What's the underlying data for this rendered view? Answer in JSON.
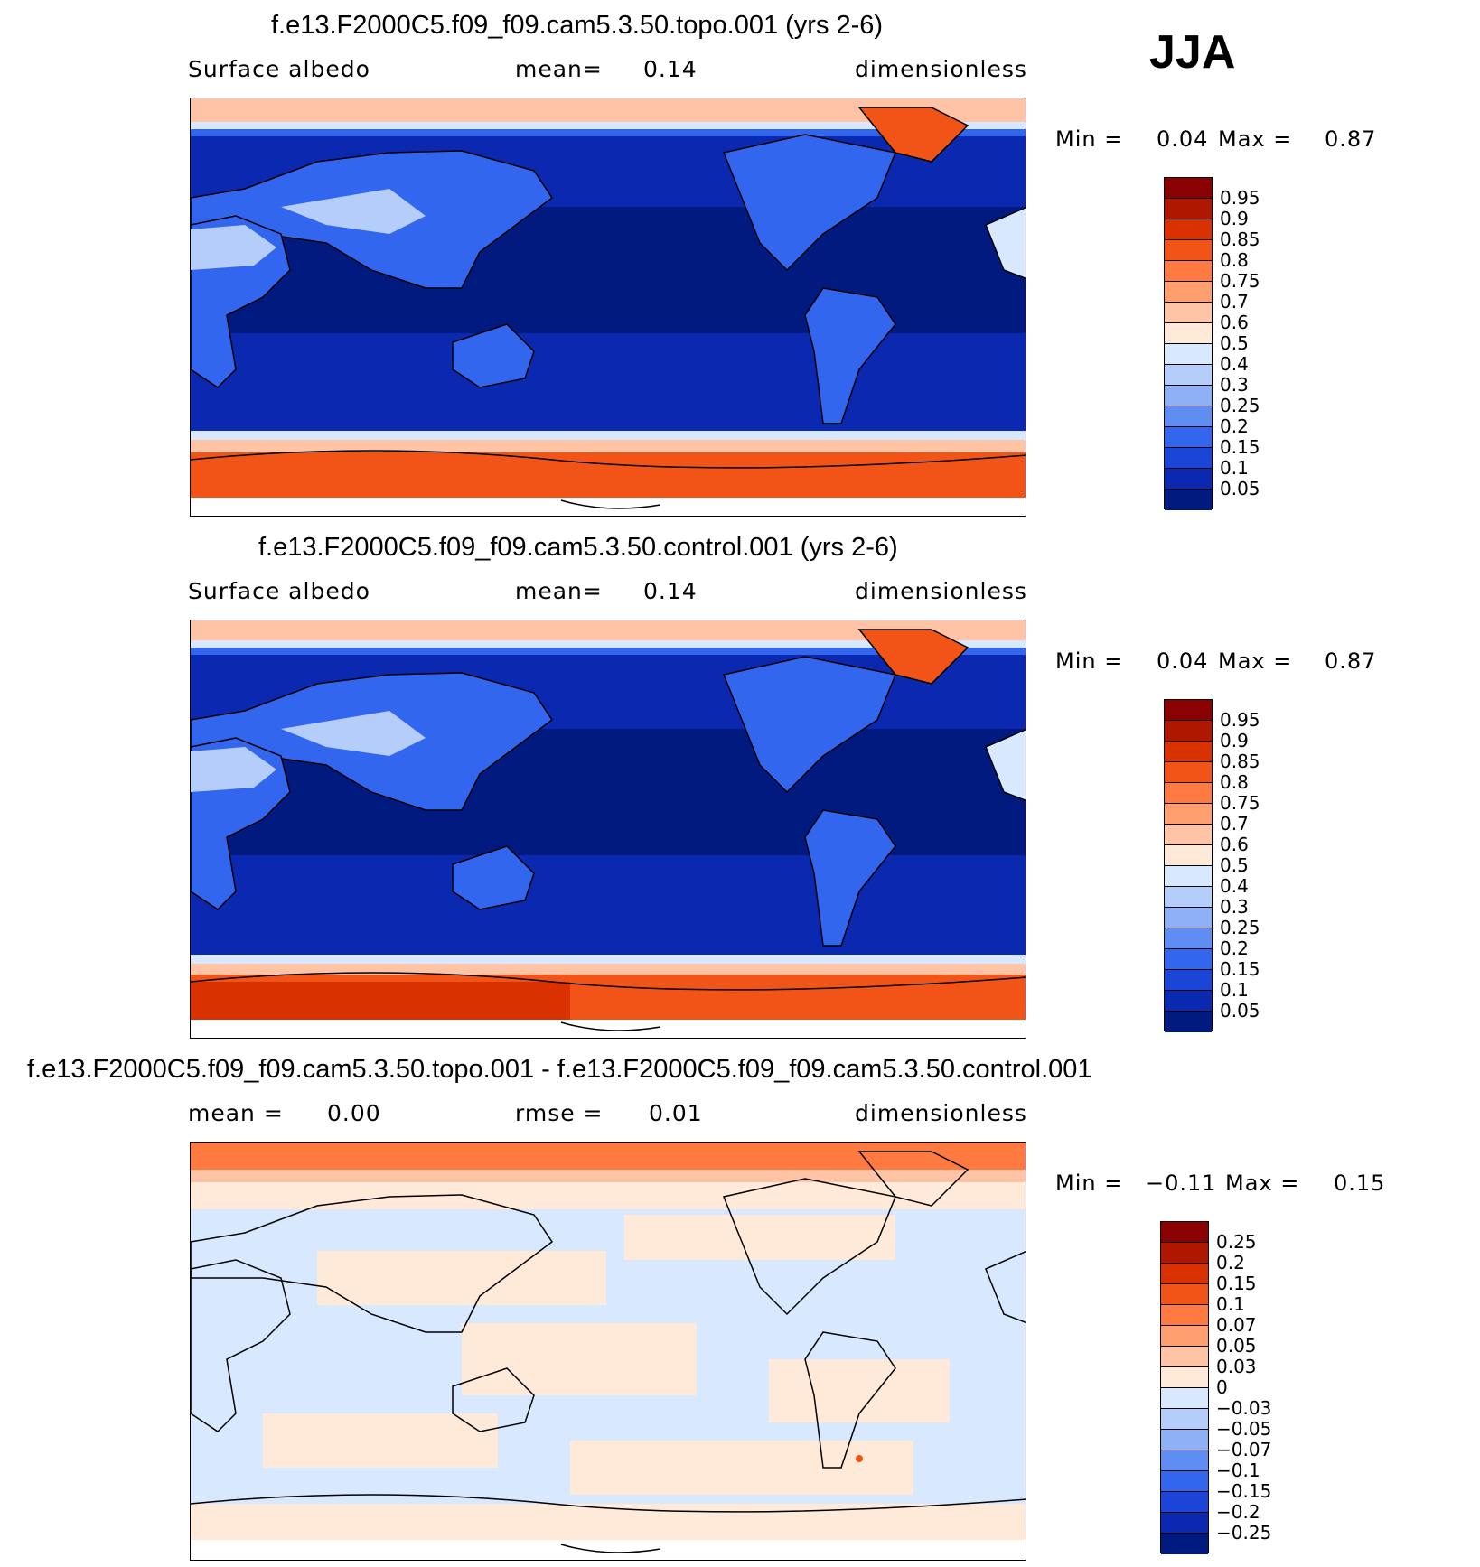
{
  "season": "JJA",
  "panels": [
    {
      "title": "f.e13.F2000C5.f09_f09.cam5.3.50.topo.001 (yrs 2-6)",
      "left_label": "Surface albedo",
      "mid_label": "mean=",
      "mid_value": "0.14",
      "units": "dimensionless",
      "min_label": "Min =",
      "min_value": "0.04",
      "max_label": "Max =",
      "max_value": "0.87",
      "colorbar": [
        "0.95",
        "0.9",
        "0.85",
        "0.8",
        "0.75",
        "0.7",
        "0.6",
        "0.5",
        "0.4",
        "0.3",
        "0.25",
        "0.2",
        "0.15",
        "0.1",
        "0.05"
      ]
    },
    {
      "title": "f.e13.F2000C5.f09_f09.cam5.3.50.control.001 (yrs 2-6)",
      "left_label": "Surface albedo",
      "mid_label": "mean=",
      "mid_value": "0.14",
      "units": "dimensionless",
      "min_label": "Min =",
      "min_value": "0.04",
      "max_label": "Max =",
      "max_value": "0.87",
      "colorbar": [
        "0.95",
        "0.9",
        "0.85",
        "0.8",
        "0.75",
        "0.7",
        "0.6",
        "0.5",
        "0.4",
        "0.3",
        "0.25",
        "0.2",
        "0.15",
        "0.1",
        "0.05"
      ]
    },
    {
      "title": "f.e13.F2000C5.f09_f09.cam5.3.50.topo.001 - f.e13.F2000C5.f09_f09.cam5.3.50.control.001",
      "left_label": "mean =",
      "left_value": "0.00",
      "mid_label": "rmse =",
      "mid_value": "0.01",
      "units": "dimensionless",
      "min_label": "Min =",
      "min_value": "−0.11",
      "max_label": "Max =",
      "max_value": "0.15",
      "colorbar": [
        "0.25",
        "0.2",
        "0.15",
        "0.1",
        "0.07",
        "0.05",
        "0.03",
        "0",
        "−0.03",
        "−0.05",
        "−0.07",
        "−0.1",
        "−0.15",
        "−0.2",
        "−0.25"
      ]
    }
  ],
  "colors": {
    "abs_scale": [
      "#8b0000",
      "#b01700",
      "#d93200",
      "#f25418",
      "#ff7a40",
      "#ff9e6e",
      "#ffc3a6",
      "#ffe9d9",
      "#d8e8ff",
      "#b5cdfb",
      "#8eb0f7",
      "#5f8df2",
      "#3366ee",
      "#1a45d6",
      "#0a28b0",
      "#001a80"
    ],
    "diff_scale": [
      "#8b0000",
      "#b01700",
      "#d93200",
      "#f25418",
      "#ff7a40",
      "#ff9e6e",
      "#ffc3a6",
      "#ffe9d9",
      "#d8e8ff",
      "#b5cdfb",
      "#8eb0f7",
      "#5f8df2",
      "#3366ee",
      "#1a45d6",
      "#0a28b0",
      "#001a80"
    ]
  }
}
